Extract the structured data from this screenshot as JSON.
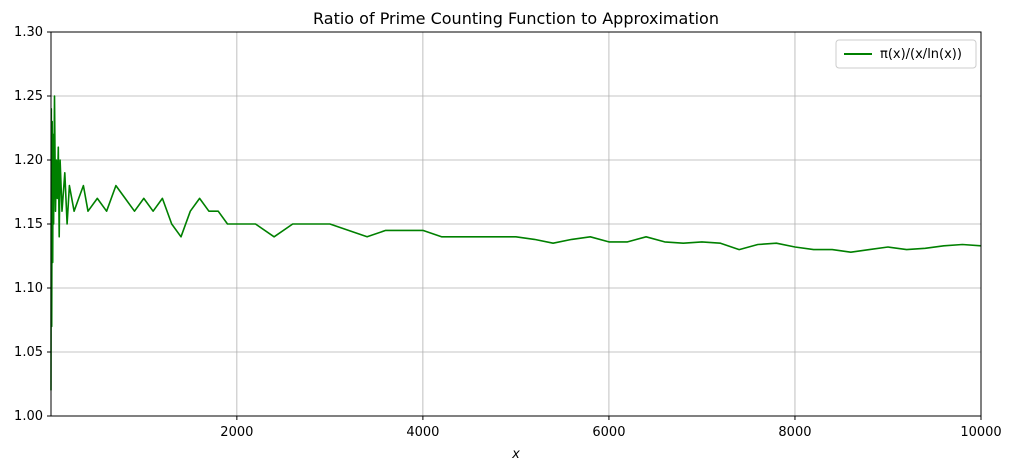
{
  "chart_data": {
    "type": "line",
    "title": "Ratio of Prime Counting Function to Approximation",
    "xlabel": "x",
    "ylabel": "",
    "xlim": [
      2,
      10000
    ],
    "ylim": [
      1.0,
      1.3
    ],
    "x_ticks": [
      2000,
      4000,
      6000,
      8000,
      10000
    ],
    "x_tick_labels": [
      "2000",
      "4000",
      "6000",
      "8000",
      "10000"
    ],
    "y_ticks": [
      1.0,
      1.05,
      1.1,
      1.15,
      1.2,
      1.25,
      1.3
    ],
    "y_tick_labels": [
      "1.00",
      "1.05",
      "1.10",
      "1.15",
      "1.20",
      "1.25",
      "1.30"
    ],
    "grid": true,
    "legend_position": "top-right",
    "series": [
      {
        "name": "π(x)/(x/ln(x))",
        "color": "#008000",
        "x": [
          2,
          5,
          10,
          15,
          20,
          25,
          30,
          40,
          50,
          60,
          70,
          80,
          90,
          100,
          120,
          150,
          175,
          200,
          250,
          300,
          350,
          400,
          500,
          600,
          700,
          800,
          900,
          1000,
          1100,
          1200,
          1300,
          1400,
          1500,
          1600,
          1700,
          1800,
          1900,
          2000,
          2200,
          2400,
          2600,
          2800,
          3000,
          3200,
          3400,
          3600,
          3800,
          4000,
          4200,
          4400,
          4600,
          4800,
          5000,
          5200,
          5400,
          5600,
          5800,
          6000,
          6200,
          6400,
          6600,
          6800,
          7000,
          7200,
          7400,
          7600,
          7800,
          8000,
          8200,
          8400,
          8600,
          8800,
          9000,
          9200,
          9400,
          9600,
          9800,
          10000
        ],
        "y": [
          1.02,
          1.24,
          1.07,
          1.23,
          1.12,
          1.22,
          1.15,
          1.25,
          1.16,
          1.2,
          1.17,
          1.21,
          1.14,
          1.2,
          1.16,
          1.19,
          1.15,
          1.18,
          1.16,
          1.17,
          1.18,
          1.16,
          1.17,
          1.16,
          1.18,
          1.17,
          1.16,
          1.17,
          1.16,
          1.17,
          1.15,
          1.14,
          1.16,
          1.17,
          1.16,
          1.16,
          1.15,
          1.15,
          1.15,
          1.14,
          1.15,
          1.15,
          1.15,
          1.145,
          1.14,
          1.145,
          1.145,
          1.145,
          1.14,
          1.14,
          1.14,
          1.14,
          1.14,
          1.138,
          1.135,
          1.138,
          1.14,
          1.136,
          1.136,
          1.14,
          1.136,
          1.135,
          1.136,
          1.135,
          1.13,
          1.134,
          1.135,
          1.132,
          1.13,
          1.13,
          1.128,
          1.13,
          1.132,
          1.13,
          1.131,
          1.133,
          1.134,
          1.133
        ]
      }
    ]
  }
}
